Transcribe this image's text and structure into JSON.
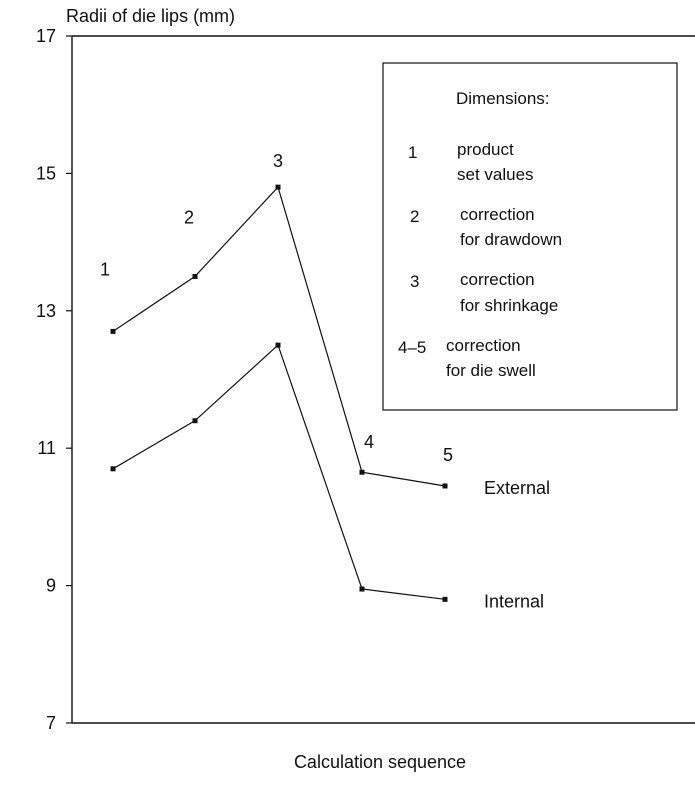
{
  "chart_data": {
    "type": "line",
    "ylabel": "Radii of die lips (mm)",
    "xlabel": "Calculation sequence",
    "ylim": [
      7,
      17
    ],
    "yticks": [
      7,
      9,
      11,
      13,
      15,
      17
    ],
    "x": [
      1,
      2,
      3,
      4,
      5
    ],
    "point_labels": [
      "1",
      "2",
      "3",
      "4",
      "5"
    ],
    "series": [
      {
        "name": "External",
        "values": [
          12.7,
          13.5,
          14.8,
          10.65,
          10.45
        ]
      },
      {
        "name": "Internal",
        "values": [
          10.7,
          11.4,
          12.5,
          8.95,
          8.8
        ]
      }
    ],
    "legend": {
      "title": "Dimensions:",
      "entries": [
        {
          "num": "1",
          "lines": [
            "product",
            "set values"
          ]
        },
        {
          "num": "2",
          "lines": [
            "correction",
            "for drawdown"
          ]
        },
        {
          "num": "3",
          "lines": [
            "correction",
            "for shrinkage"
          ]
        },
        {
          "num": "4–5",
          "lines": [
            "correction",
            "for die swell"
          ]
        }
      ]
    },
    "grid": false,
    "legend_placement": "top-right"
  }
}
